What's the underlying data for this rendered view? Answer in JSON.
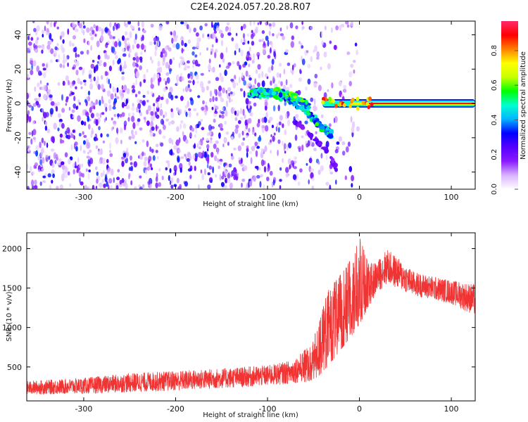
{
  "title": "C2E4.2024.057.20.28.R07",
  "chart_data": [
    {
      "type": "heatmap",
      "name": "spectrogram",
      "xlabel": "Height of straight line (km)",
      "ylabel": "Frequency (Hz)",
      "xlim": [
        -362,
        126
      ],
      "ylim": [
        -50,
        48
      ],
      "xticks": [
        -300,
        -200,
        -100,
        0,
        100
      ],
      "xtick_labels": [
        "-300",
        "-200",
        "-100",
        "0",
        "100"
      ],
      "yticks": [
        -40,
        -20,
        0,
        20,
        40
      ],
      "ytick_labels": [
        "-40",
        "-20",
        "0",
        "20",
        "40"
      ],
      "colorbar": {
        "label": "Normalized spectral amplitude",
        "range": [
          0,
          0.97
        ],
        "ticks": [
          0.0,
          0.2,
          0.4,
          0.6,
          0.8
        ],
        "tick_labels": [
          "0.0",
          "0.2",
          "0.4",
          "0.6",
          "0.8"
        ],
        "colors": [
          "#ffffff",
          "#d9b3ff",
          "#8a1aff",
          "#5500ff",
          "#0000ff",
          "#00b4ff",
          "#00ffd0",
          "#00ff00",
          "#c8ff00",
          "#ffff00",
          "#ff8000",
          "#ff0000",
          "#ff2a6a"
        ]
      },
      "features": [
        {
          "label": "broadband noise",
          "x_range": [
            -362,
            -60
          ],
          "freq_range": [
            -50,
            48
          ],
          "amplitude": 0.2
        },
        {
          "label": "descending trace",
          "x": [
            -120,
            -95,
            -75,
            -55,
            -40,
            -30
          ],
          "freq": [
            6,
            6,
            2,
            -6,
            -14,
            -18
          ],
          "amplitude": 0.55
        },
        {
          "label": "upper trace",
          "x": [
            -115,
            -90,
            -70,
            -55
          ],
          "freq": [
            7,
            7,
            4,
            -2
          ],
          "amplitude": 0.6
        },
        {
          "label": "lower branch",
          "x": [
            -80,
            -50,
            -35,
            -25
          ],
          "freq": [
            -6,
            -20,
            -28,
            -38
          ],
          "amplitude": 0.25
        },
        {
          "label": "carrier line",
          "x": [
            -40,
            0,
            50,
            126
          ],
          "freq": [
            0,
            0,
            0,
            0
          ],
          "amplitude": 0.95
        }
      ]
    },
    {
      "type": "line",
      "name": "snr",
      "xlabel": "Height of straight line (km)",
      "ylabel": "SNR (10 * v/v)",
      "color": "#f03333",
      "xlim": [
        -362,
        126
      ],
      "ylim": [
        70,
        2200
      ],
      "xticks": [
        -300,
        -200,
        -100,
        0,
        100
      ],
      "xtick_labels": [
        "-300",
        "-200",
        "-100",
        "0",
        "100"
      ],
      "yticks": [
        500,
        1000,
        1500,
        2000
      ],
      "ytick_labels": [
        "500",
        "1000",
        "1500",
        "2000"
      ],
      "envelope": {
        "x": [
          -362,
          -300,
          -250,
          -200,
          -150,
          -100,
          -75,
          -55,
          -45,
          -35,
          -25,
          -15,
          -5,
          0,
          10,
          20,
          30,
          40,
          60,
          80,
          100,
          126
        ],
        "low": [
          150,
          160,
          180,
          200,
          230,
          260,
          290,
          320,
          380,
          500,
          650,
          800,
          950,
          1050,
          1250,
          1450,
          1550,
          1500,
          1400,
          1350,
          1300,
          1150
        ],
        "high": [
          320,
          360,
          420,
          450,
          480,
          520,
          580,
          750,
          1000,
          1450,
          1600,
          1750,
          1950,
          2150,
          1800,
          1850,
          2000,
          1900,
          1700,
          1650,
          1600,
          1550
        ]
      }
    }
  ]
}
